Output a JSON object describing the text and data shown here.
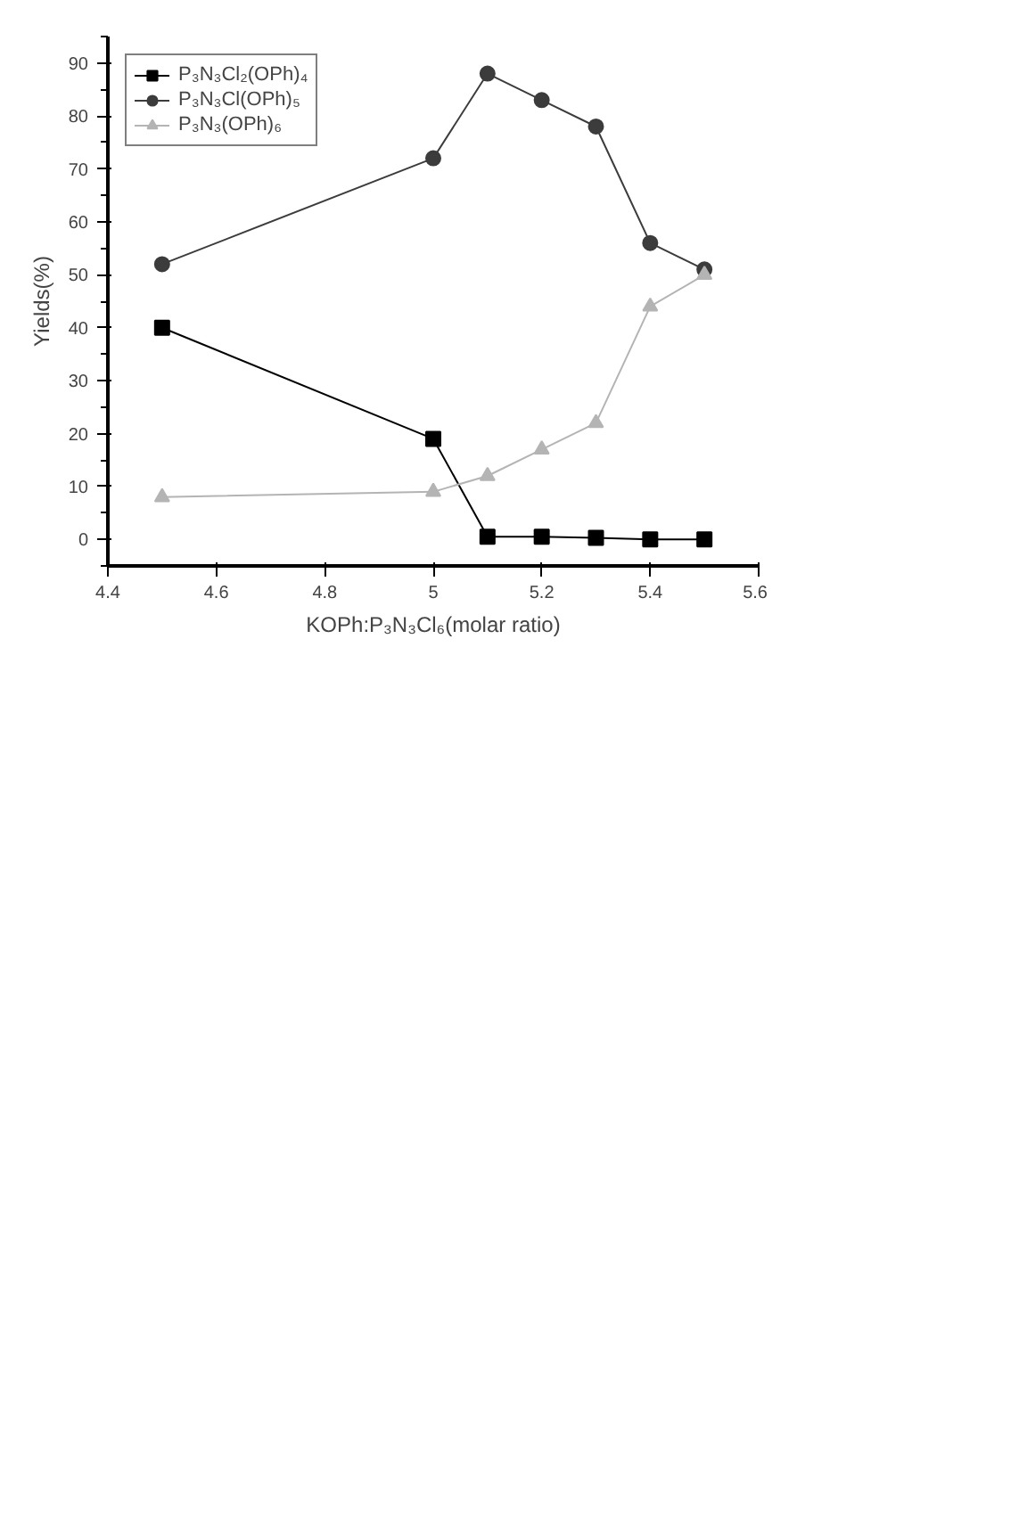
{
  "chart_data": {
    "type": "line",
    "xlabel": "KOPh:P₃N₃Cl₆(molar ratio)",
    "ylabel": "Yields(%)",
    "x": [
      4.5,
      5.0,
      5.1,
      5.2,
      5.3,
      5.4,
      5.5
    ],
    "series": [
      {
        "name": "P₃N₃Cl₂(OPh)₄",
        "color": "#000000",
        "marker": "square",
        "values": [
          40,
          19,
          0.5,
          0.5,
          0.3,
          0,
          0
        ]
      },
      {
        "name": "P₃N₃Cl(OPh)₅",
        "color": "#3c3c3c",
        "marker": "circle",
        "values": [
          52,
          72,
          88,
          83,
          78,
          56,
          51
        ]
      },
      {
        "name": "P₃N₃(OPh)₆",
        "color": "#b4b4b4",
        "marker": "triangle",
        "values": [
          8,
          9,
          12,
          17,
          22,
          44,
          50
        ]
      }
    ],
    "xlim": [
      4.4,
      5.6
    ],
    "xticks": [
      4.4,
      4.6,
      4.8,
      5.0,
      5.2,
      5.4,
      5.6
    ],
    "ylim": [
      -5,
      95
    ],
    "yticks": [
      0,
      10,
      20,
      30,
      40,
      50,
      60,
      70,
      80,
      90
    ],
    "grid": false,
    "legend": "top left",
    "line_style": "solid"
  }
}
